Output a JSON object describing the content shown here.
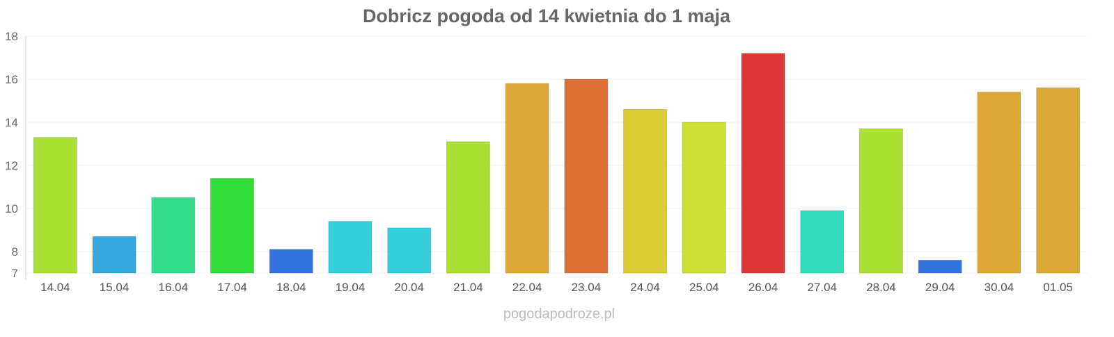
{
  "chart_data": {
    "type": "bar",
    "title": "Dobricz pogoda od 14 kwietnia do 1 maja",
    "xlabel": "",
    "ylabel": "",
    "ylim": [
      7,
      18
    ],
    "yticks": [
      7,
      8,
      10,
      12,
      14,
      16,
      18
    ],
    "grid": true,
    "categories": [
      "14.04",
      "15.04",
      "16.04",
      "17.04",
      "18.04",
      "19.04",
      "20.04",
      "21.04",
      "22.04",
      "23.04",
      "24.04",
      "25.04",
      "26.04",
      "27.04",
      "28.04",
      "29.04",
      "30.04",
      "01.05"
    ],
    "values": [
      13.3,
      8.7,
      10.5,
      11.4,
      8.1,
      9.4,
      9.1,
      13.1,
      15.8,
      16.0,
      14.6,
      14.0,
      17.2,
      9.9,
      13.7,
      7.6,
      15.4,
      15.6
    ],
    "colors": [
      "#aadf34",
      "#35a8dd",
      "#35dc8c",
      "#32dd3a",
      "#3273dd",
      "#35cfdc",
      "#35cfdc",
      "#aadf34",
      "#dca835",
      "#dc7035",
      "#dccb35",
      "#ccdf34",
      "#dc3535",
      "#35dcba",
      "#aadf34",
      "#3273dd",
      "#dca835",
      "#dca835"
    ]
  },
  "watermark": "pogodapodroze.pl"
}
